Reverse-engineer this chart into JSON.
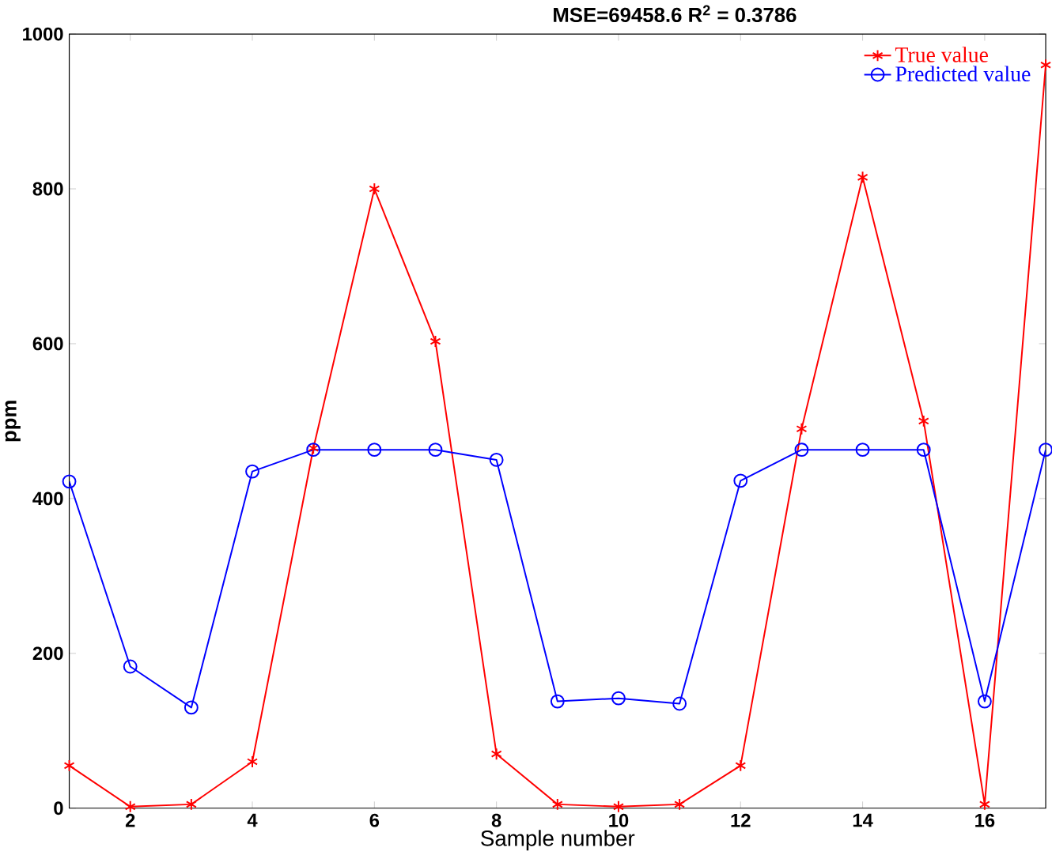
{
  "chart_data": {
    "type": "line",
    "title": "MSE=69458.6   R$^{2}$ = 0.3786",
    "xlabel": "Sample number",
    "ylabel": "ppm",
    "x": [
      1,
      2,
      3,
      4,
      5,
      6,
      7,
      8,
      9,
      10,
      11,
      12,
      13,
      14,
      15,
      16,
      17
    ],
    "xlim": [
      1,
      17
    ],
    "xticks": [
      2,
      4,
      6,
      8,
      10,
      12,
      14,
      16
    ],
    "ylim": [
      0,
      1000
    ],
    "yticks": [
      0,
      200,
      400,
      600,
      800,
      1000
    ],
    "legend": "top right",
    "grid": false,
    "series": [
      {
        "name": "True value",
        "color": "#ff0000",
        "marker": "cross",
        "values": [
          55,
          2,
          5,
          60,
          465,
          800,
          603,
          70,
          5,
          2,
          5,
          55,
          490,
          815,
          500,
          5,
          960
        ]
      },
      {
        "name": "Predicted value",
        "color": "#0000ff",
        "marker": "circle",
        "values": [
          422,
          183,
          130,
          435,
          463,
          463,
          463,
          450,
          138,
          142,
          135,
          423,
          463,
          463,
          463,
          138,
          463
        ]
      }
    ]
  }
}
